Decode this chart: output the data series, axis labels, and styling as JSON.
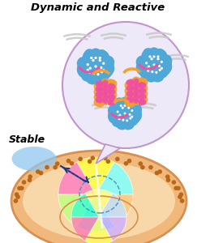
{
  "title_dynamic": "Dynamic",
  "title_and": " and ",
  "title_reactive": "Reactive",
  "title_stable": "Stable",
  "bg_color": "#ffffff",
  "nucleus_fill": "#f0b87a",
  "nucleus_edge": "#d89050",
  "nucleus_inner_fill": "#f8d8a8",
  "speech_bubble_fill": "#ede8f8",
  "speech_bubble_edge": "#c090c8",
  "chromatin_blue": "#50a8d8",
  "helix_orange": "#f0a030",
  "helix_pink": "#f050a0",
  "vibration_color": "#c8c8c8",
  "arrow_color": "#203880",
  "stable_blob_color": "#90c8f0",
  "dot_color": "#b86818",
  "domain_colors_upper": [
    "#80ffff",
    "#ffff40",
    "#ff80c0",
    "#40ffff",
    "#ffff40",
    "#80ff80",
    "#40e0ff"
  ],
  "domain_colors_lower": [
    "#c0e0ff",
    "#ffff80",
    "#40ffcc",
    "#ff80b0",
    "#ffff60",
    "#d0b0ff",
    "#80ffcc"
  ]
}
